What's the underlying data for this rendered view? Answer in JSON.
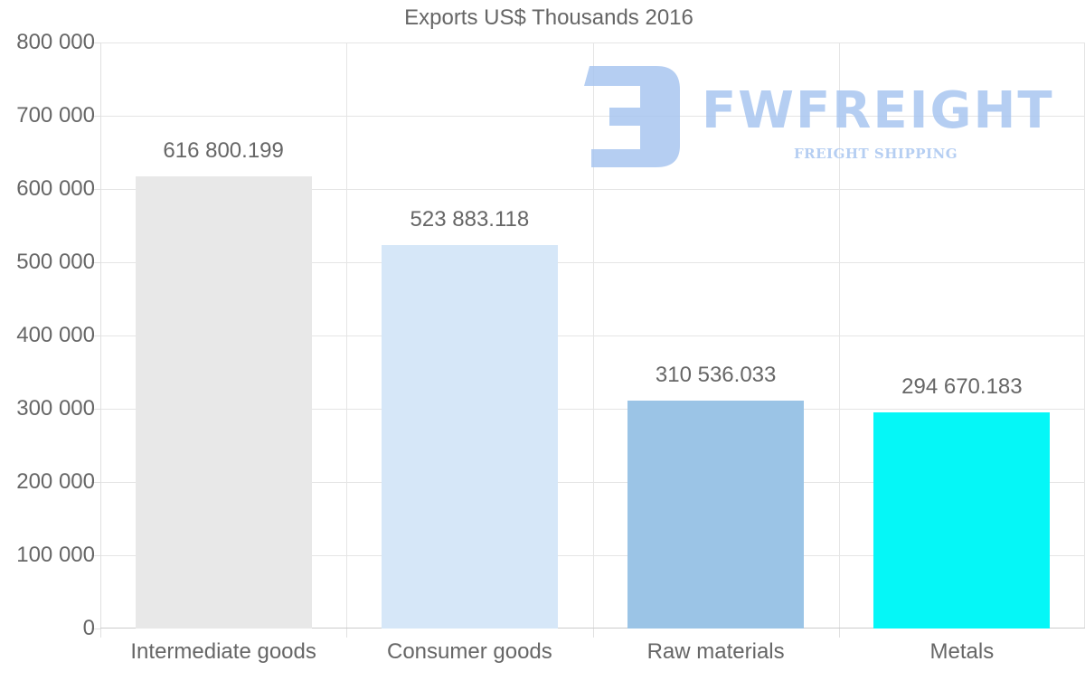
{
  "chart_data": {
    "type": "bar",
    "title": "Exports US$ Thousands 2016",
    "xlabel": "",
    "ylabel": "",
    "categories": [
      "Intermediate goods",
      "Consumer goods",
      "Raw materials",
      "Metals"
    ],
    "values": [
      616800.199,
      523883.118,
      310536.033,
      294670.183
    ],
    "value_labels": [
      "616 800.199",
      "523 883.118",
      "310 536.033",
      "294 670.183"
    ],
    "colors": [
      "#e8e8e8",
      "#d6e7f8",
      "#9bc4e6",
      "#05f7f7"
    ],
    "ylim": [
      0,
      800000
    ],
    "yticks": [
      0,
      100000,
      200000,
      300000,
      400000,
      500000,
      600000,
      700000,
      800000
    ],
    "ytick_labels": [
      "0",
      "100 000",
      "200 000",
      "300 000",
      "400 000",
      "500 000",
      "600 000",
      "700 000",
      "800 000"
    ],
    "grid": true,
    "legend": "none"
  },
  "watermark": {
    "brand": "FWFREIGHT",
    "tagline": "FREIGHT SHIPPING",
    "color": "#a9c6f0"
  }
}
